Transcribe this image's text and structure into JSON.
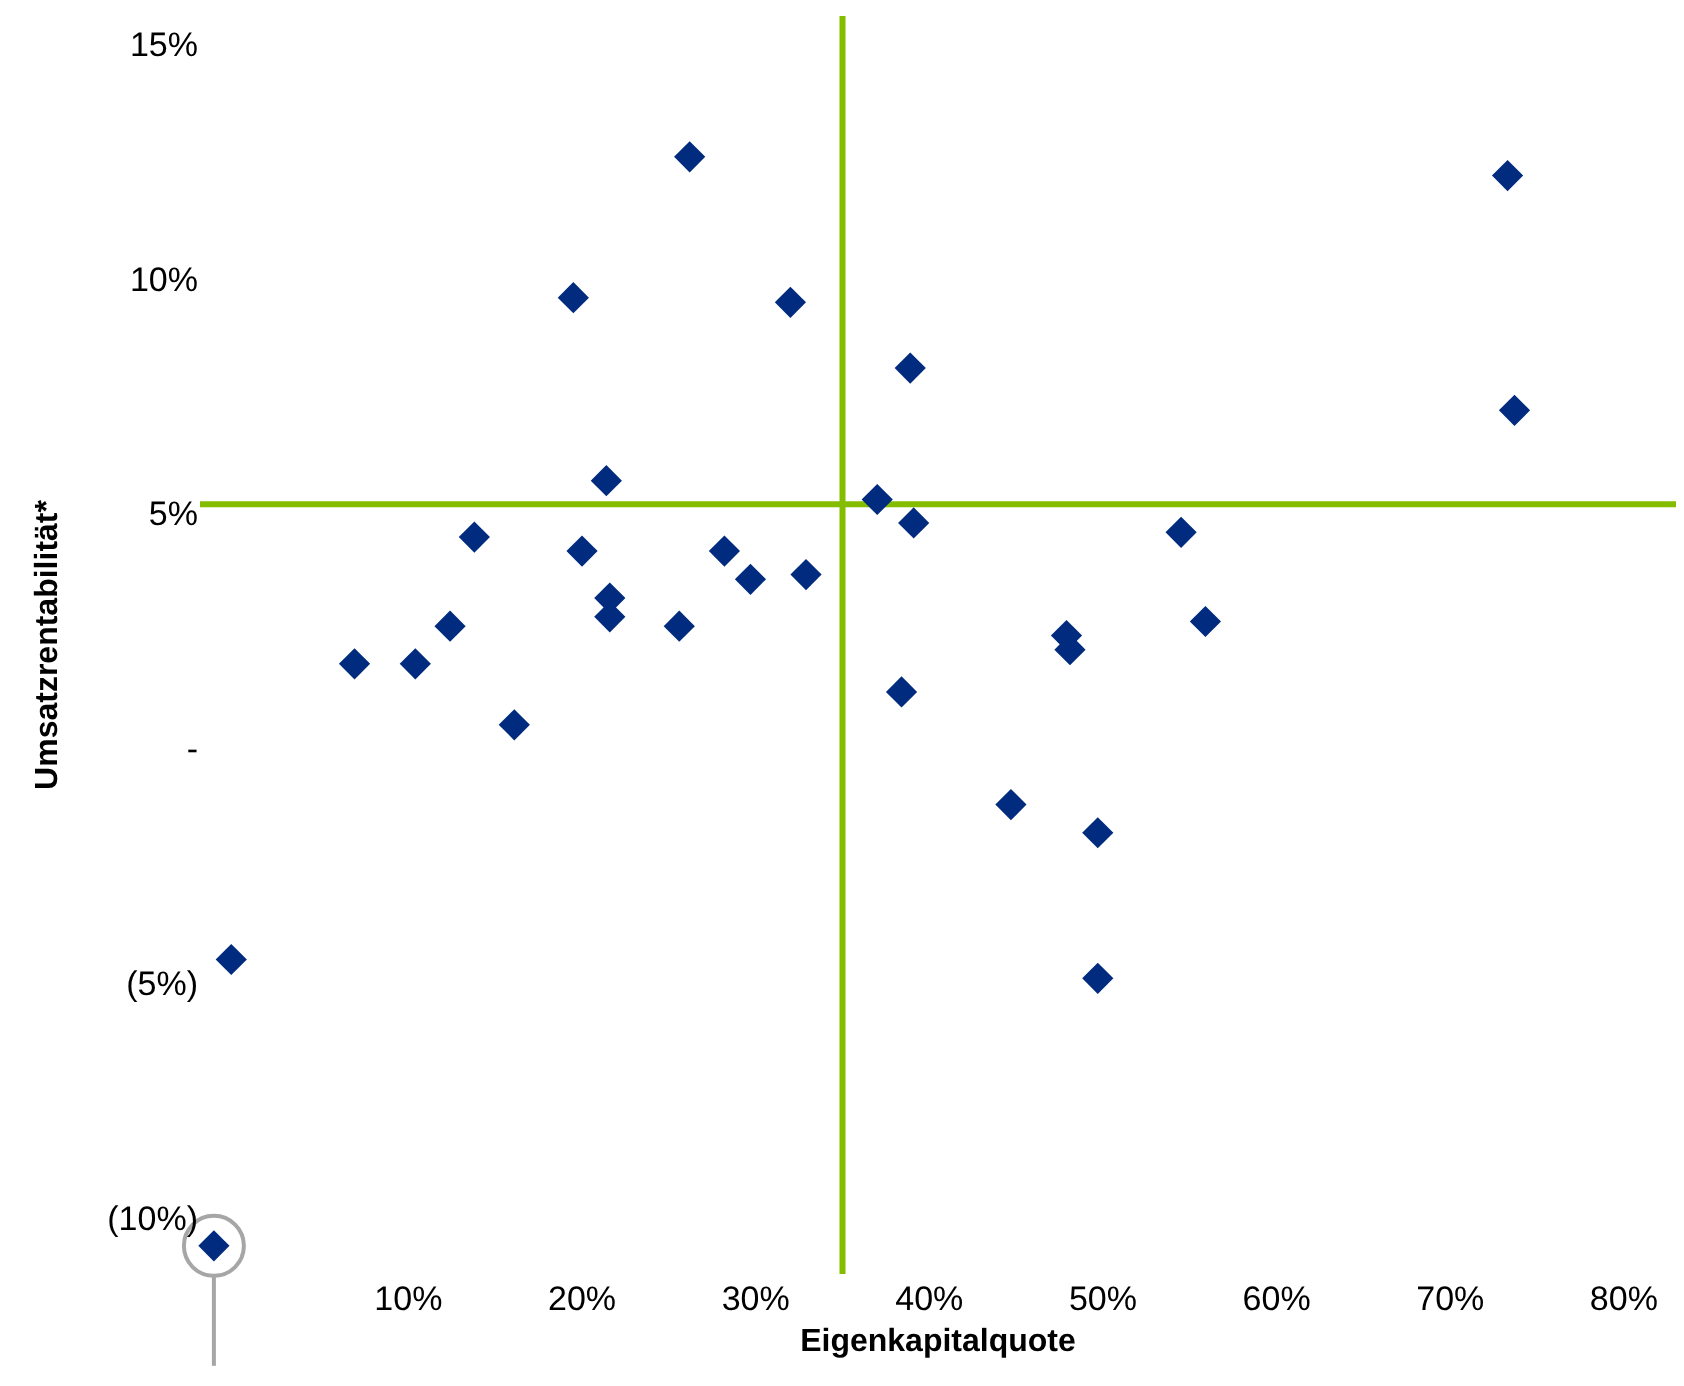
{
  "chart_data": {
    "type": "scatter",
    "xlabel": "Eigenkapitalquote",
    "ylabel": "Umsatzrentabilität*",
    "xlim": [
      -2,
      83
    ],
    "ylim": [
      -11.2,
      15.6
    ],
    "xticks": [
      {
        "value": 10,
        "label": "10%"
      },
      {
        "value": 20,
        "label": "20%"
      },
      {
        "value": 30,
        "label": "30%"
      },
      {
        "value": 40,
        "label": "40%"
      },
      {
        "value": 50,
        "label": "50%"
      },
      {
        "value": 60,
        "label": "60%"
      },
      {
        "value": 70,
        "label": "70%"
      },
      {
        "value": 80,
        "label": "80%"
      }
    ],
    "yticks": [
      {
        "value": -10,
        "label": "(10%)"
      },
      {
        "value": -5,
        "label": "(5%)"
      },
      {
        "value": 0,
        "label": "-"
      },
      {
        "value": 5,
        "label": "5%"
      },
      {
        "value": 10,
        "label": "10%"
      },
      {
        "value": 15,
        "label": "15%"
      }
    ],
    "marker": "diamond",
    "grid": false,
    "series": [
      {
        "color": "#002b7f",
        "x": [
          26.2,
          19.5,
          32.0,
          21.4,
          13.8,
          20.0,
          28.2,
          29.7,
          32.9,
          21.6,
          21.6,
          25.6,
          12.4,
          6.9,
          10.4,
          16.1,
          38.4,
          73.3,
          73.7,
          38.9,
          37.0,
          39.1,
          54.5,
          55.9,
          47.9,
          48.1,
          44.7,
          49.7,
          -0.2,
          49.7,
          -1.2
        ],
        "values": [
          12.6,
          9.6,
          9.5,
          5.7,
          4.5,
          4.2,
          4.2,
          3.6,
          3.7,
          3.2,
          2.8,
          2.6,
          2.6,
          1.8,
          1.8,
          0.5,
          1.2,
          12.2,
          7.2,
          8.1,
          5.3,
          4.8,
          4.6,
          2.7,
          2.4,
          2.1,
          -1.2,
          -1.8,
          -4.5,
          -4.9,
          -10.6
        ]
      }
    ],
    "ref_lines": [
      {
        "axis": "x",
        "value": 35,
        "color": "#84bd00"
      },
      {
        "axis": "y",
        "value": 5.2,
        "color": "#84bd00"
      }
    ]
  }
}
